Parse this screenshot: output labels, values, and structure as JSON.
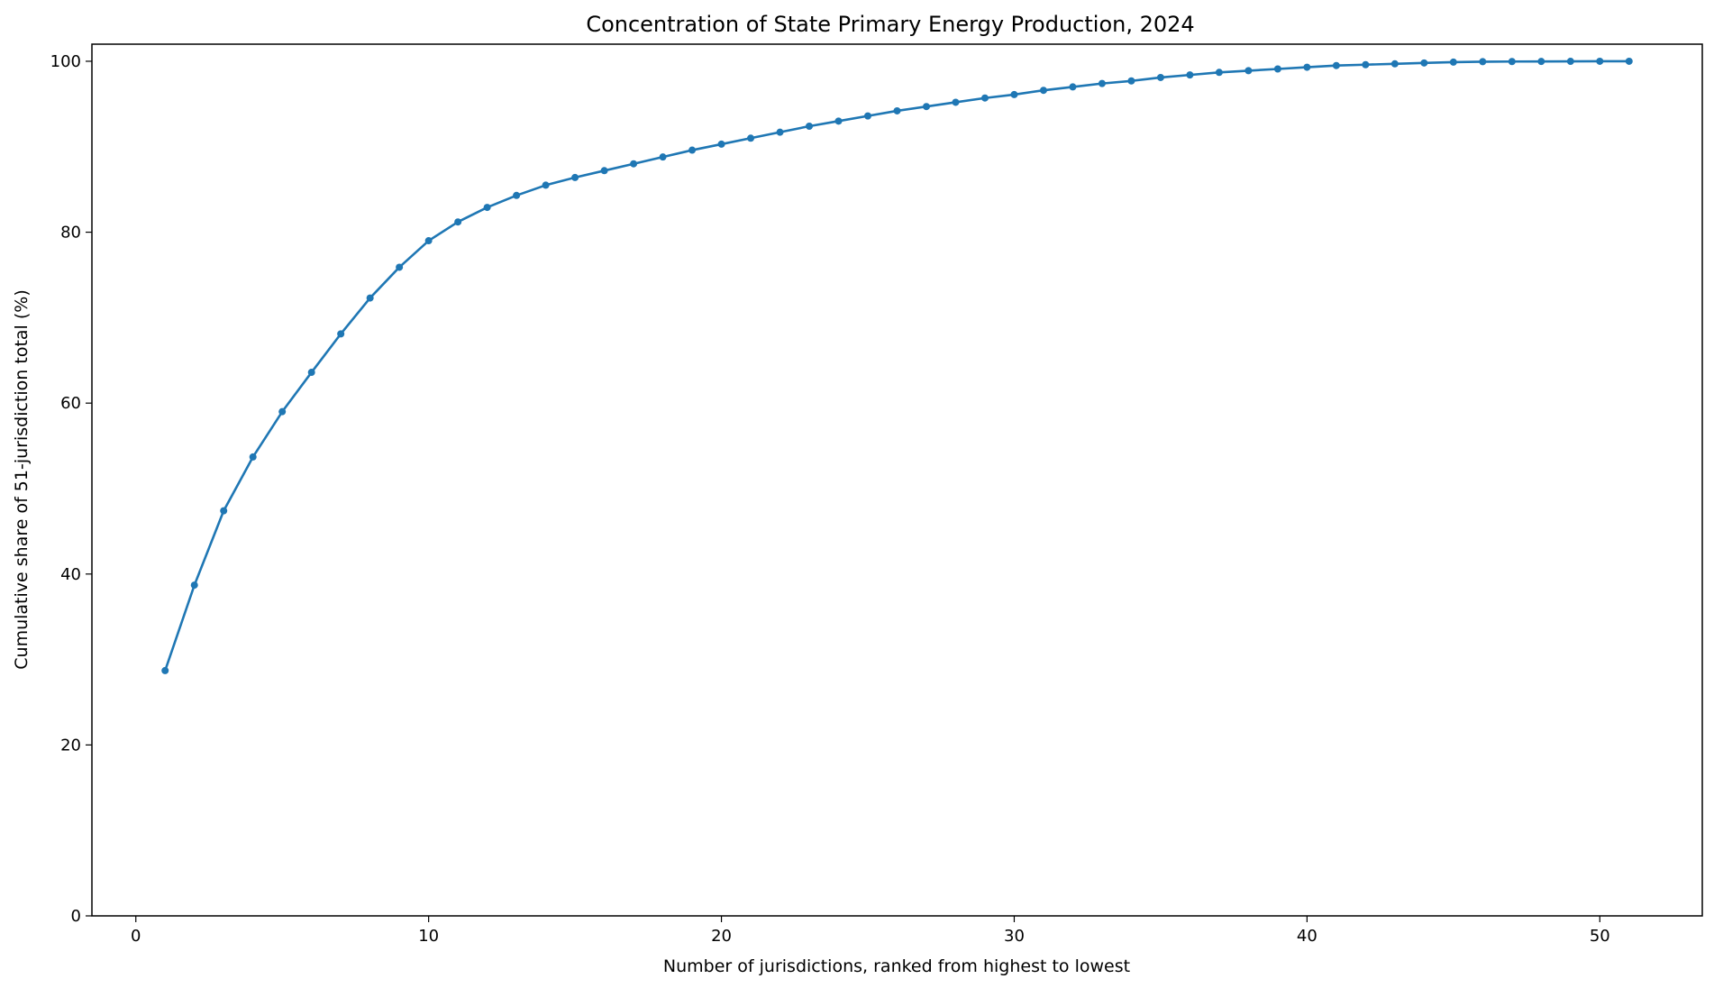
{
  "chart_data": {
    "type": "line",
    "title": "Concentration of State Primary Energy Production, 2024",
    "xlabel": "Number of jurisdictions, ranked from highest to lowest",
    "ylabel": "Cumulative share of 51-jurisdiction total (%)",
    "xlim": [
      -1.5,
      53.5
    ],
    "ylim": [
      0,
      102
    ],
    "xticks": [
      0,
      10,
      20,
      30,
      40,
      50
    ],
    "yticks": [
      0,
      20,
      40,
      60,
      80,
      100
    ],
    "grid": false,
    "series_color": "#1f77b4",
    "x": [
      1,
      2,
      3,
      4,
      5,
      6,
      7,
      8,
      9,
      10,
      11,
      12,
      13,
      14,
      15,
      16,
      17,
      18,
      19,
      20,
      21,
      22,
      23,
      24,
      25,
      26,
      27,
      28,
      29,
      30,
      31,
      32,
      33,
      34,
      35,
      36,
      37,
      38,
      39,
      40,
      41,
      42,
      43,
      44,
      45,
      46,
      47,
      48,
      49,
      50,
      51
    ],
    "series": [
      {
        "values": [
          28.7,
          38.7,
          47.4,
          53.7,
          59.0,
          63.6,
          68.1,
          72.3,
          75.9,
          79.0,
          81.2,
          82.9,
          84.3,
          85.5,
          86.4,
          87.2,
          88.0,
          88.8,
          89.6,
          90.3,
          91.0,
          91.7,
          92.4,
          93.0,
          93.6,
          94.2,
          94.7,
          95.2,
          95.7,
          96.1,
          96.6,
          97.0,
          97.4,
          97.7,
          98.1,
          98.4,
          98.7,
          98.9,
          99.1,
          99.3,
          99.5,
          99.6,
          99.7,
          99.8,
          99.9,
          99.95,
          99.97,
          99.98,
          99.99,
          100.0,
          100.0
        ]
      }
    ]
  }
}
